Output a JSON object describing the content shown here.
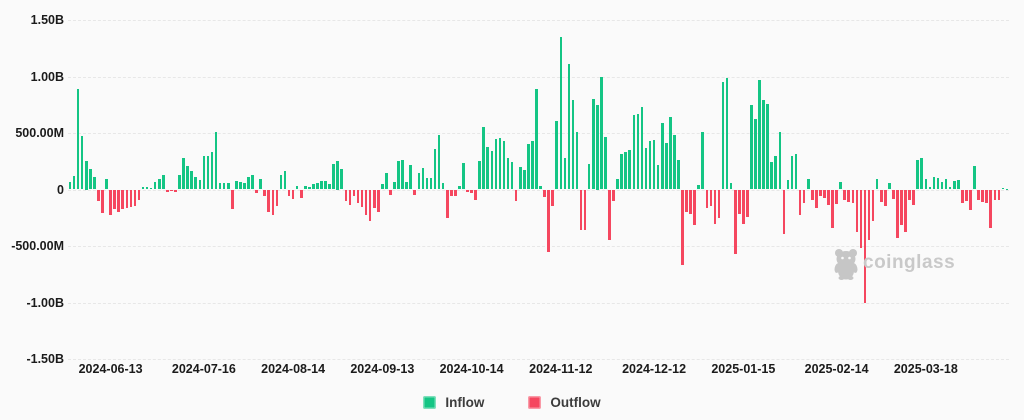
{
  "chart_data": {
    "type": "bar",
    "title": "",
    "description": "Daily ETF net flow bars; positive bars are Inflow (green), negative bars are Outflow (red)",
    "values_unit": "millions_usd",
    "values": [
      70,
      120,
      890,
      470,
      250,
      180,
      110,
      -100,
      -210,
      90,
      -230,
      -170,
      -195,
      -175,
      -165,
      -155,
      -145,
      -95,
      25,
      20,
      15,
      70,
      90,
      130,
      -20,
      -15,
      -25,
      130,
      277,
      204,
      160,
      110,
      85,
      300,
      295,
      330,
      510,
      60,
      55,
      55,
      -170,
      75,
      65,
      60,
      115,
      130,
      -30,
      90,
      -60,
      -195,
      -230,
      -150,
      130,
      160,
      -60,
      -88,
      30,
      -71,
      35,
      20,
      47,
      60,
      78,
      75,
      50,
      230,
      250,
      177,
      -106,
      -133,
      -60,
      -120,
      -157,
      -230,
      -283,
      -160,
      -200,
      45,
      144,
      -45,
      65,
      248,
      265,
      70,
      220,
      -50,
      150,
      188,
      100,
      105,
      354,
      478,
      60,
      -254,
      -60,
      -55,
      30,
      233,
      -25,
      -30,
      -97,
      248,
      549,
      372,
      345,
      451,
      460,
      425,
      277,
      245,
      -106,
      195,
      175,
      407,
      430,
      885,
      35,
      -65,
      -550,
      -150,
      610,
      1350,
      283,
      1107,
      788,
      505,
      -354,
      -360,
      230,
      797,
      750,
      992,
      469,
      -443,
      -100,
      90,
      310,
      330,
      350,
      663,
      670,
      734,
      365,
      425,
      440,
      213,
      586,
      415,
      646,
      486,
      265,
      -664,
      -195,
      -221,
      -318,
      44,
      505,
      -168,
      -145,
      -307,
      -250,
      950,
      990,
      60,
      -573,
      -220,
      -307,
      -239,
      752,
      620,
      965,
      788,
      755,
      240,
      295,
      505,
      -395,
      80,
      300,
      310,
      -230,
      -120,
      90,
      -90,
      -165,
      -60,
      -75,
      -140,
      -342,
      -130,
      65,
      -90,
      -110,
      -120,
      -372,
      -520,
      -1006,
      -450,
      -280,
      97,
      -112,
      -150,
      60,
      -85,
      -431,
      -310,
      -372,
      -95,
      -133,
      265,
      280,
      90,
      20,
      110,
      100,
      65,
      95,
      25,
      75,
      85,
      -120,
      -100,
      -177,
      212,
      -90,
      -110,
      -120,
      -342,
      -95,
      -90,
      10,
      8
    ],
    "ylim_millions": [
      -1500,
      1500
    ],
    "y_ticks": [
      {
        "value": 1500,
        "label": "1.50B"
      },
      {
        "value": 1000,
        "label": "1.00B"
      },
      {
        "value": 500,
        "label": "500.00M"
      },
      {
        "value": 0,
        "label": "0"
      },
      {
        "value": -500,
        "label": "-500.00M"
      },
      {
        "value": -1000,
        "label": "-1.00B"
      },
      {
        "value": -1500,
        "label": "-1.50B"
      }
    ],
    "x_ticks": {
      "labels": [
        "2024-06-13",
        "2024-07-16",
        "2024-08-14",
        "2024-09-13",
        "2024-10-14",
        "2024-11-12",
        "2024-12-12",
        "2025-01-15",
        "2025-02-14",
        "2025-03-18"
      ],
      "bar_indices": [
        10,
        33,
        55,
        77,
        99,
        121,
        144,
        166,
        189,
        211
      ]
    },
    "grid": "horizontal-dashed",
    "legend_position": "bottom",
    "legend": [
      {
        "label": "Inflow",
        "color": "#14c584"
      },
      {
        "label": "Outflow",
        "color": "#f5475f"
      }
    ]
  },
  "watermark": {
    "text": "coinglass"
  },
  "colors": {
    "inflow": "#14c584",
    "outflow": "#f5475f",
    "axis_text": "#1b1b1b",
    "grid": "#e7e7e7",
    "watermark": "#c9c9c9",
    "background": "#fafafa"
  }
}
